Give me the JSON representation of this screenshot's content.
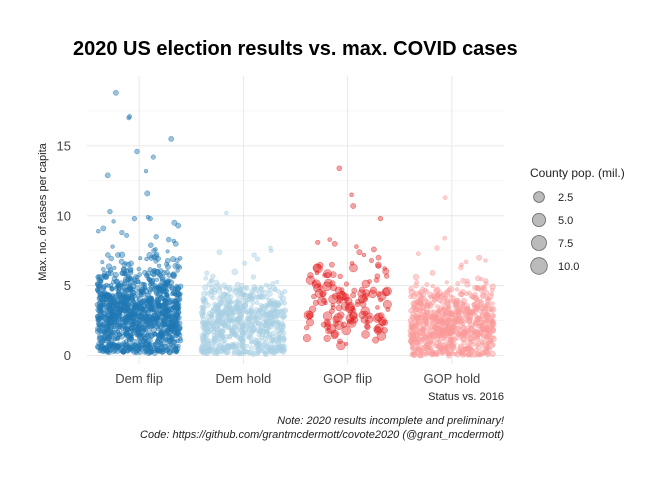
{
  "chart_data": {
    "type": "scatter",
    "title": "2020 US election results vs. max. COVID cases",
    "xlabel": "Status vs. 2016",
    "ylabel": "Max. no. of cases per capita",
    "categories": [
      "Dem flip",
      "Dem hold",
      "GOP flip",
      "GOP hold"
    ],
    "ylim": [
      -0.6,
      20
    ],
    "yticks": [
      0,
      5,
      10,
      15
    ],
    "ytick_labels": [
      "0",
      "5",
      "10",
      "15"
    ],
    "grid": true,
    "legend_placement": "right",
    "size_legend": {
      "title": "County pop. (mil.)",
      "labels": [
        "2.5",
        "5.0",
        "7.5",
        "10.0"
      ],
      "values": [
        2.5,
        5.0,
        7.5,
        10.0
      ],
      "color": "#9e9e9e"
    },
    "series": [
      {
        "category": "Dem flip",
        "color": "#1f77b4",
        "opacity": 0.45,
        "points": [
          {
            "y": 18.8
          },
          {
            "y": 17.0
          },
          {
            "y": 17.1
          },
          {
            "y": 15.5
          },
          {
            "y": 14.6
          },
          {
            "y": 14.2
          },
          {
            "y": 13.2
          },
          {
            "y": 12.9
          },
          {
            "y": 11.6
          },
          {
            "y": 10.3
          },
          {
            "y": 9.9
          },
          {
            "y": 9.8
          },
          {
            "y": 9.8
          },
          {
            "y": 9.6
          },
          {
            "y": 9.5
          },
          {
            "y": 9.3
          },
          {
            "y": 9.1
          },
          {
            "y": 8.9
          },
          {
            "y": 8.8
          },
          {
            "y": 8.6
          },
          {
            "y": 8.5
          },
          {
            "y": 8.3
          },
          {
            "y": 8.2
          },
          {
            "y": 8.0
          },
          {
            "y": 7.9
          },
          {
            "y": 7.8
          },
          {
            "y": 7.6
          },
          {
            "y": 7.5
          }
        ],
        "bulk": {
          "n": 1100,
          "min": 0.2,
          "max": 7.5,
          "center": 3.0
        }
      },
      {
        "category": "Dem hold",
        "color": "#a6cee3",
        "opacity": 0.45,
        "points": [
          {
            "y": 10.2
          },
          {
            "y": 7.7
          },
          {
            "y": 7.5
          },
          {
            "y": 7.4
          },
          {
            "y": 7.2
          },
          {
            "y": 6.9
          },
          {
            "y": 6.6
          }
        ],
        "bulk": {
          "n": 650,
          "min": 0.1,
          "max": 6.5,
          "center": 2.3
        }
      },
      {
        "category": "GOP flip",
        "color": "#e31a1c",
        "opacity": 0.4,
        "points": [
          {
            "y": 13.4
          },
          {
            "y": 11.5
          },
          {
            "y": 10.7
          },
          {
            "y": 9.8
          },
          {
            "y": 8.3
          },
          {
            "y": 8.1
          },
          {
            "y": 8.0
          },
          {
            "y": 7.8
          },
          {
            "y": 7.6
          },
          {
            "y": 7.4
          },
          {
            "y": 7.2
          },
          {
            "y": 7.0
          },
          {
            "y": 6.8
          },
          {
            "y": 6.6
          },
          {
            "y": 6.4
          }
        ],
        "bulk": {
          "n": 140,
          "min": 0.0,
          "max": 6.5,
          "center": 3.8
        }
      },
      {
        "category": "GOP hold",
        "color": "#fb9a99",
        "opacity": 0.45,
        "points": [
          {
            "y": 11.3
          },
          {
            "y": 8.4
          },
          {
            "y": 7.7
          },
          {
            "y": 7.3
          },
          {
            "y": 7.0
          },
          {
            "y": 6.8
          },
          {
            "y": 6.7
          },
          {
            "y": 6.5
          },
          {
            "y": 6.3
          }
        ],
        "bulk": {
          "n": 700,
          "min": 0.0,
          "max": 6.2,
          "center": 2.2
        }
      }
    ],
    "caption_lines": [
      "Note: 2020 results incomplete and preliminary!",
      "Code: https://github.com/grantmcdermott/covote2020 (@grant_mcdermott)"
    ]
  }
}
